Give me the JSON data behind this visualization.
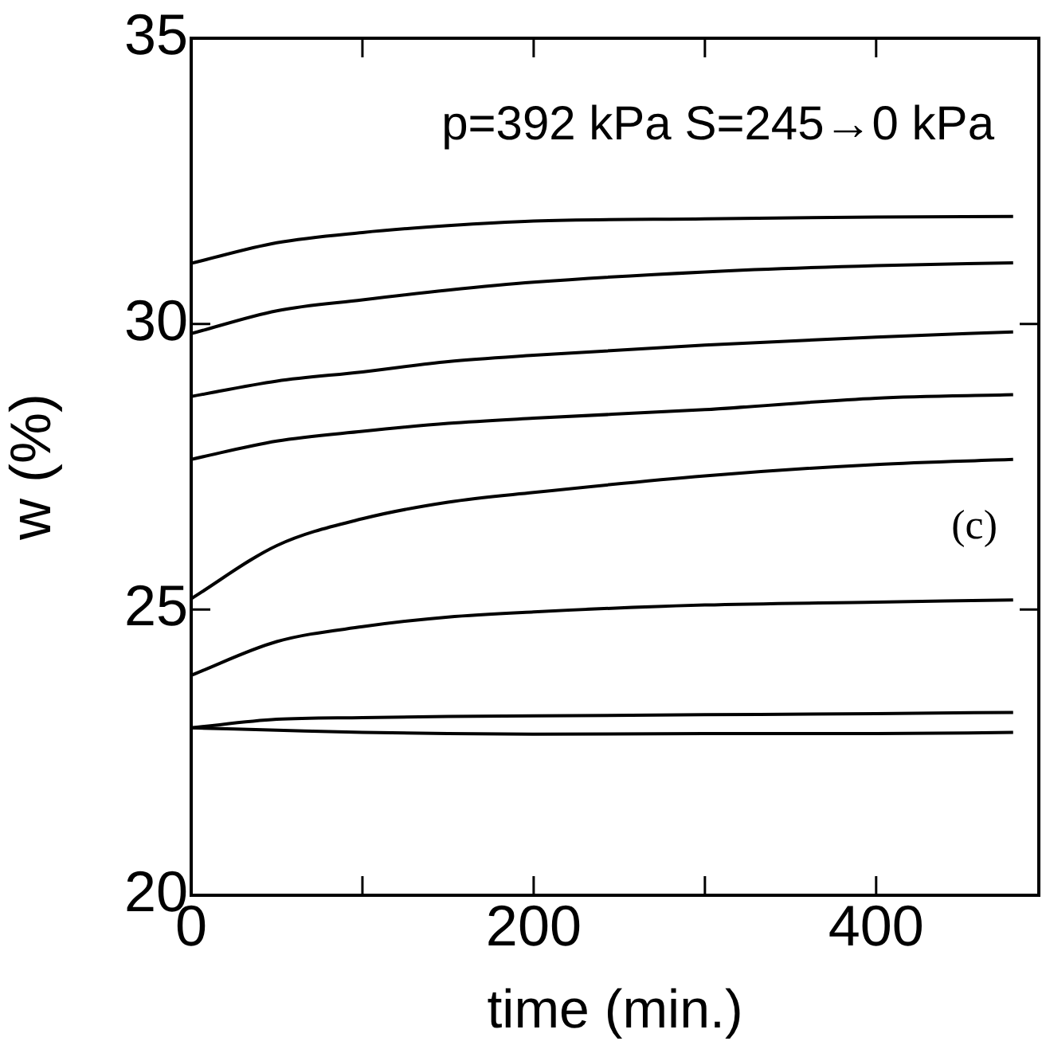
{
  "chart_data": {
    "type": "line",
    "xlabel": "time (min.)",
    "ylabel": "w (%)",
    "annotations": [
      "p=392 kPa S=245→0 kPa",
      "(c)"
    ],
    "xlim": [
      0,
      495
    ],
    "xticks": [
      0,
      {
        "value": 100,
        "label": null
      },
      200,
      {
        "value": 300,
        "label": null
      },
      400
    ],
    "ylim": [
      20,
      35
    ],
    "yticks": [
      20,
      25,
      30,
      35
    ],
    "grid": false,
    "legend": false,
    "marker": "none",
    "line_style": "solid",
    "x": [
      0,
      50,
      100,
      150,
      200,
      300,
      400,
      480
    ],
    "series": [
      {
        "color": "#000000",
        "values": [
          31.06,
          31.42,
          31.6,
          31.72,
          31.8,
          31.84,
          31.87,
          31.88
        ]
      },
      {
        "color": "#000000",
        "values": [
          29.83,
          30.23,
          30.42,
          30.59,
          30.73,
          30.91,
          31.02,
          31.07
        ]
      },
      {
        "color": "#000000",
        "values": [
          28.73,
          29.0,
          29.16,
          29.34,
          29.45,
          29.63,
          29.77,
          29.86
        ]
      },
      {
        "color": "#000000",
        "values": [
          27.63,
          27.95,
          28.12,
          28.26,
          28.35,
          28.5,
          28.7,
          28.76
        ]
      },
      {
        "color": "#000000",
        "values": [
          25.19,
          26.12,
          26.59,
          26.88,
          27.05,
          27.34,
          27.54,
          27.63
        ]
      },
      {
        "color": "#000000",
        "values": [
          23.85,
          24.44,
          24.7,
          24.87,
          24.96,
          25.08,
          25.13,
          25.17
        ]
      },
      {
        "color": "#000000",
        "values": [
          22.93,
          23.08,
          23.11,
          23.13,
          23.14,
          23.16,
          23.18,
          23.2
        ]
      },
      {
        "color": "#000000",
        "values": [
          22.93,
          22.89,
          22.85,
          22.83,
          22.82,
          22.83,
          22.83,
          22.85
        ]
      }
    ]
  }
}
